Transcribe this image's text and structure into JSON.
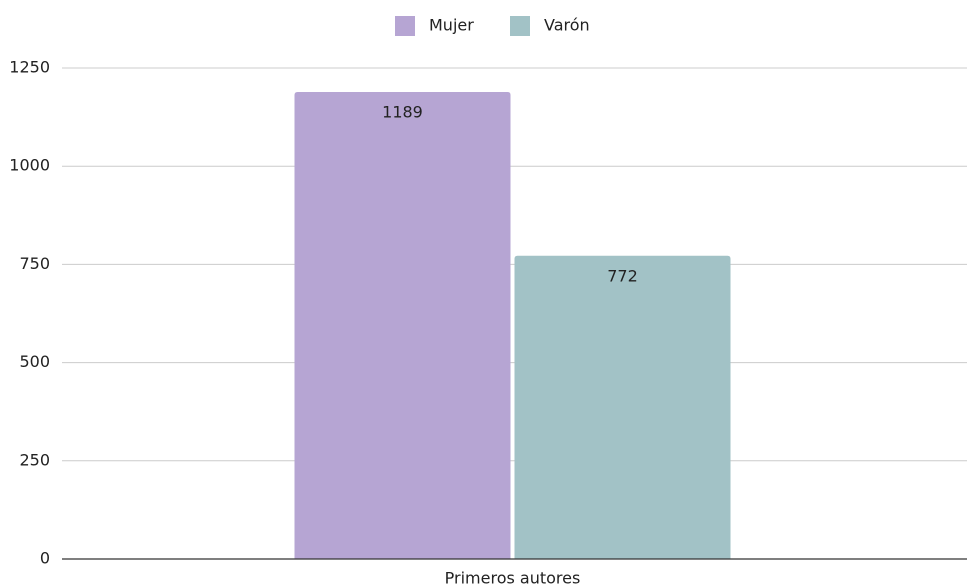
{
  "chart_data": {
    "type": "bar",
    "categories": [
      "Primeros autores"
    ],
    "series": [
      {
        "name": "Mujer",
        "color": "#b6a5d3",
        "values": [
          1189
        ]
      },
      {
        "name": "Varón",
        "color": "#a2c2c6",
        "values": [
          772
        ]
      }
    ],
    "ylim": [
      0,
      1250
    ],
    "yticks": [
      0,
      250,
      500,
      750,
      1000,
      1250
    ],
    "grid": true,
    "legend": "top"
  }
}
